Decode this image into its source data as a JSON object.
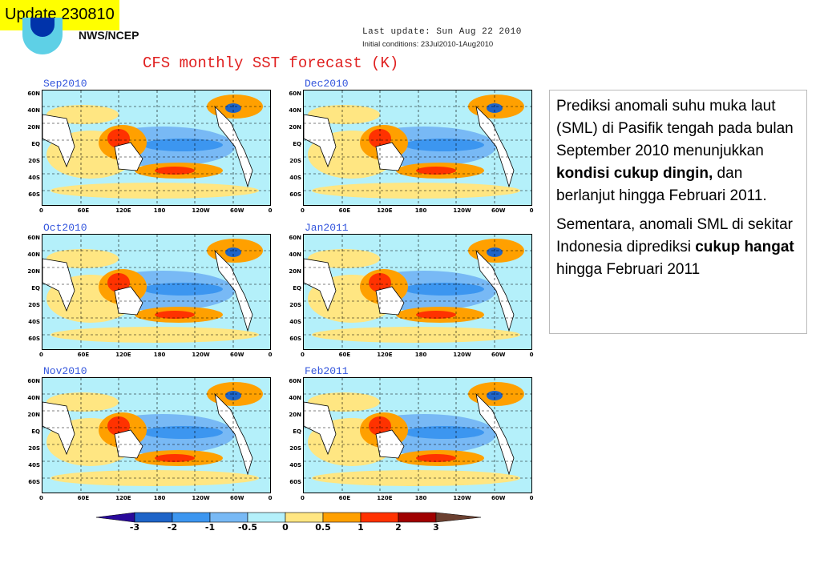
{
  "badge": "Update 230810",
  "header": {
    "org": "NWS/NCEP",
    "last_update": "Last update: Sun Aug 22 2010",
    "initial_conditions": "Initial conditions: 23Jul2010-1Aug2010",
    "title": "CFS monthly SST forecast (K)"
  },
  "panels": [
    {
      "label": "Sep2010"
    },
    {
      "label": "Dec2010"
    },
    {
      "label": "Oct2010"
    },
    {
      "label": "Jan2011"
    },
    {
      "label": "Nov2010"
    },
    {
      "label": "Feb2011"
    }
  ],
  "lat_labels": [
    "60N",
    "40N",
    "20N",
    "EQ",
    "20S",
    "40S",
    "60S"
  ],
  "lon_labels": [
    "0",
    "60E",
    "120E",
    "180",
    "120W",
    "60W",
    "0"
  ],
  "colorbar": {
    "labels": [
      "-3",
      "-2",
      "-1",
      "-0.5",
      "0",
      "0.5",
      "1",
      "2",
      "3"
    ],
    "colors": [
      "#1e64c8",
      "#3c96f0",
      "#78b9f5",
      "#b4f0fa",
      "#ffe682",
      "#ffa000",
      "#ff3200",
      "#a00000"
    ],
    "low_end": "#2a0a9a",
    "high_end": "#6b4030"
  },
  "description": {
    "p1_a": "Prediksi anomali suhu muka laut (SML) di Pasifik tengah pada bulan September 2010 menunjukkan ",
    "p1_b": "kondisi cukup dingin,",
    "p1_c": " dan berlanjut hingga Februari 2011.",
    "p2_a": "Sementara, anomali SML di sekitar Indonesia diprediksi ",
    "p2_b": "cukup hangat",
    "p2_c": " hingga Februari 2011"
  }
}
